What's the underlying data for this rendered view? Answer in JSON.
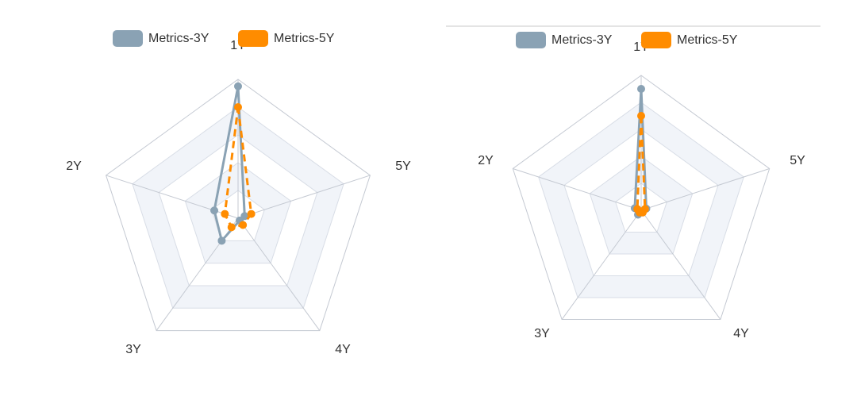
{
  "colors": {
    "series_3y": "#8aa2b4",
    "series_5y": "#ff8c00",
    "grid_line": "#d8dde6",
    "axis_line": "#c4c9d2",
    "band_fill": "#f1f4f9",
    "top_rule": "#c8c8c8"
  },
  "chart_data": [
    {
      "type": "radar",
      "indicators": [
        "1Y",
        "5Y",
        "4Y",
        "3Y",
        "2Y"
      ],
      "max": 100,
      "split_number": 5,
      "legend_placement": "top-center",
      "series": [
        {
          "name": "Metrics-3Y",
          "values": [
            95,
            5,
            2,
            20,
            18
          ],
          "line_style": "solid",
          "symbol": "circle"
        },
        {
          "name": "Metrics-5Y",
          "values": [
            80,
            10,
            6,
            8,
            10
          ],
          "line_style": "dashed",
          "symbol": "circle"
        }
      ]
    },
    {
      "type": "radar",
      "indicators": [
        "1Y",
        "5Y",
        "4Y",
        "3Y",
        "2Y"
      ],
      "max": 100,
      "split_number": 5,
      "legend_placement": "top-center",
      "series": [
        {
          "name": "Metrics-3Y",
          "values": [
            90,
            4,
            1,
            4,
            5
          ],
          "line_style": "solid",
          "symbol": "circle"
        },
        {
          "name": "Metrics-5Y",
          "values": [
            70,
            3,
            2,
            2,
            3
          ],
          "line_style": "dashed",
          "symbol": "circle"
        }
      ]
    }
  ]
}
